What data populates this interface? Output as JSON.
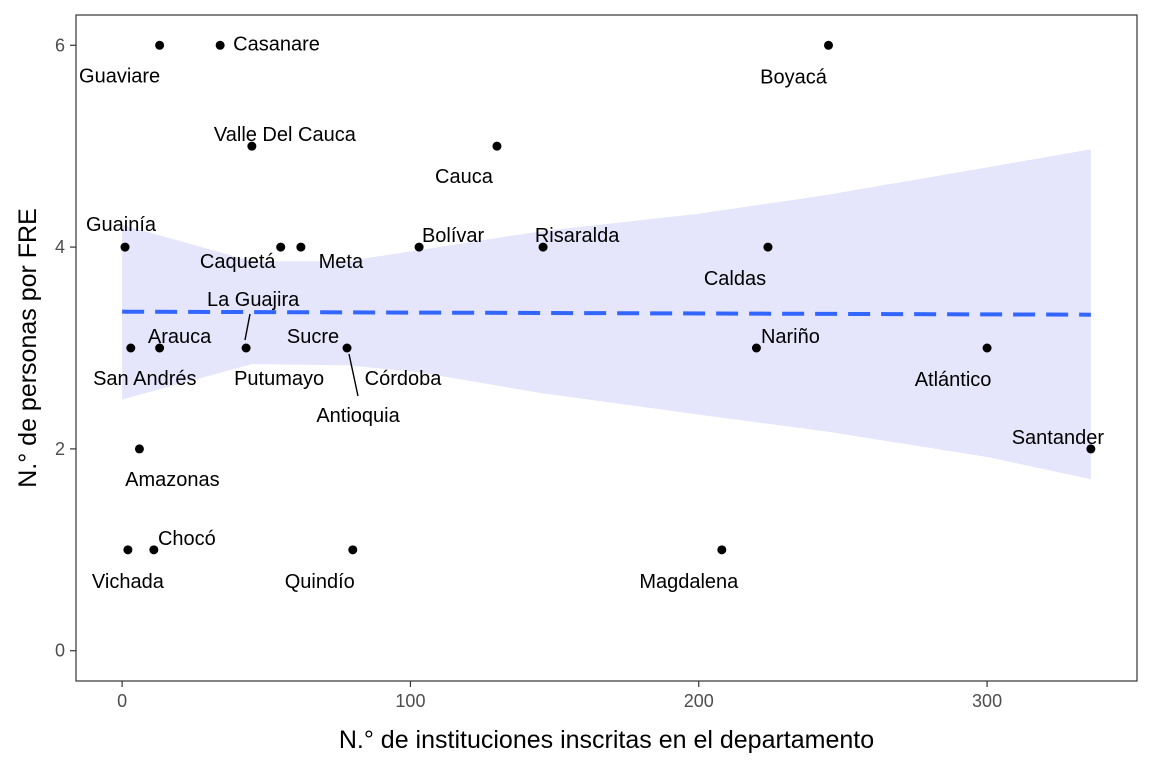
{
  "chart_data": {
    "type": "scatter",
    "xlabel": "N.° de instituciones inscritas en el departamento",
    "ylabel": "N.° de personas por FRE",
    "xlim": [
      -16,
      352
    ],
    "ylim": [
      -0.3,
      6.3
    ],
    "x_ticks": [
      0,
      100,
      200,
      300
    ],
    "y_ticks": [
      0,
      2,
      4,
      6
    ],
    "grid": false,
    "points": [
      {
        "label": "Guaviare",
        "x": 13,
        "y": 6
      },
      {
        "label": "Casanare",
        "x": 34,
        "y": 6
      },
      {
        "label": "Boyacá",
        "x": 245,
        "y": 6
      },
      {
        "label": "Valle Del Cauca",
        "x": 45,
        "y": 5
      },
      {
        "label": "Cauca",
        "x": 130,
        "y": 5
      },
      {
        "label": "Guainía",
        "x": 1,
        "y": 4
      },
      {
        "label": "Caquetá",
        "x": 55,
        "y": 4
      },
      {
        "label": "Meta",
        "x": 62,
        "y": 4
      },
      {
        "label": "Bolívar",
        "x": 103,
        "y": 4
      },
      {
        "label": "Risaralda",
        "x": 146,
        "y": 4
      },
      {
        "label": "Caldas",
        "x": 224,
        "y": 4
      },
      {
        "label": "San Andrés",
        "x": 3,
        "y": 3
      },
      {
        "label": "Arauca",
        "x": 13,
        "y": 3
      },
      {
        "label": "La Guajira",
        "x": 43,
        "y": 3
      },
      {
        "label": "Putumayo",
        "x": 43,
        "y": 3
      },
      {
        "label": "Sucre",
        "x": 78,
        "y": 3
      },
      {
        "label": "Córdoba",
        "x": 78,
        "y": 3
      },
      {
        "label": "Antioquia",
        "x": 78,
        "y": 3
      },
      {
        "label": "Nariño",
        "x": 220,
        "y": 3
      },
      {
        "label": "Atlántico",
        "x": 300,
        "y": 3
      },
      {
        "label": "Amazonas",
        "x": 6,
        "y": 2
      },
      {
        "label": "Santander",
        "x": 336,
        "y": 2
      },
      {
        "label": "Vichada",
        "x": 2,
        "y": 1
      },
      {
        "label": "Chocó",
        "x": 11,
        "y": 1
      },
      {
        "label": "Quindío",
        "x": 80,
        "y": 1
      },
      {
        "label": "Magdalena",
        "x": 208,
        "y": 1
      }
    ],
    "trend_line": {
      "x": [
        0,
        336
      ],
      "y": [
        3.36,
        3.33
      ]
    },
    "confidence_band": {
      "x": [
        0,
        45,
        78,
        103,
        146,
        200,
        245,
        300,
        336
      ],
      "upper": [
        4.22,
        3.86,
        3.86,
        3.97,
        4.16,
        4.33,
        4.52,
        4.79,
        4.97
      ],
      "lower": [
        2.49,
        2.84,
        2.83,
        2.76,
        2.55,
        2.34,
        2.17,
        1.92,
        1.7
      ]
    },
    "colors": {
      "band": "#e5e5fb",
      "trend": "#3366ff",
      "point": "#000000"
    }
  }
}
